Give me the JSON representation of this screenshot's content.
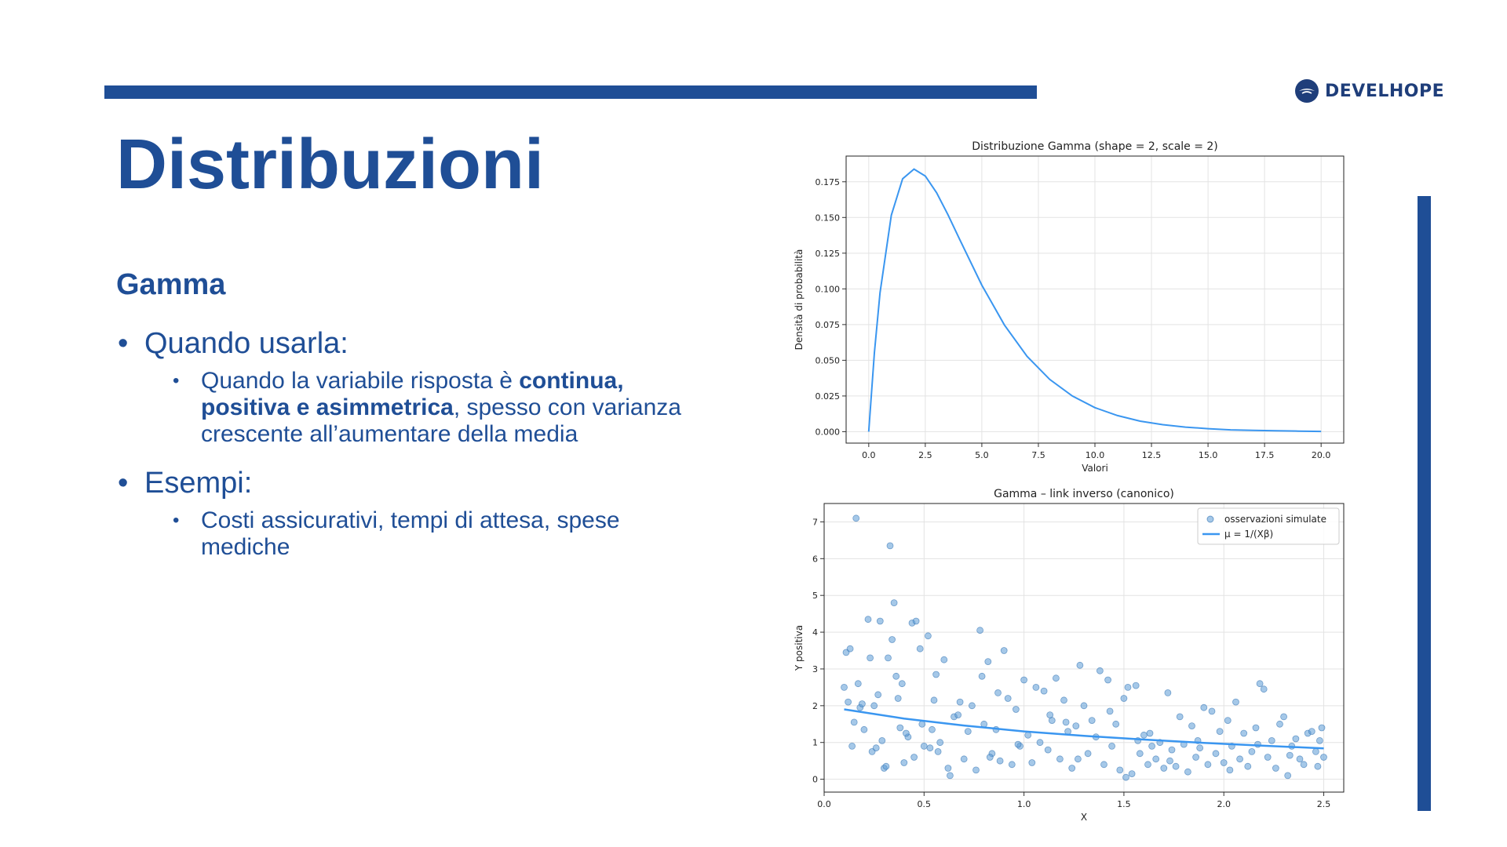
{
  "slide": {
    "title": "Distribuzioni",
    "subtitle": "Gamma",
    "bullets": [
      {
        "text": "Quando usarla:",
        "sub": [
          {
            "parts": [
              {
                "t": "Quando la variabile risposta è ",
                "b": false
              },
              {
                "t": "continua, positiva e asimmetrica",
                "b": true
              },
              {
                "t": ", spesso con varianza crescente all’aumentare della media",
                "b": false
              }
            ]
          }
        ]
      },
      {
        "text": "Esempi:",
        "sub": [
          {
            "parts": [
              {
                "t": "Costi assicurativi, tempi di attesa, spese mediche",
                "b": false
              }
            ]
          }
        ]
      }
    ]
  },
  "logo": {
    "text": "DEVELHOPE",
    "icon": "develhope-logo-icon"
  },
  "colors": {
    "brand": "#1f4e96",
    "curve": "#3a96f0",
    "points": "#5b9bd5"
  },
  "chart_data": [
    {
      "type": "line",
      "title": "Distribuzione Gamma (shape = 2, scale = 2)",
      "xlabel": "Valori",
      "ylabel": "Densità di probabilità",
      "xlim": [
        -1,
        21
      ],
      "ylim": [
        -0.008,
        0.193
      ],
      "xticks": [
        "0.0",
        "2.5",
        "5.0",
        "7.5",
        "10.0",
        "12.5",
        "15.0",
        "17.5",
        "20.0"
      ],
      "yticks": [
        "0.000",
        "0.025",
        "0.050",
        "0.075",
        "0.100",
        "0.125",
        "0.150",
        "0.175"
      ],
      "grid": true,
      "x": [
        0,
        0.25,
        0.5,
        1,
        1.5,
        2,
        2.5,
        3,
        3.5,
        4,
        5,
        6,
        7,
        8,
        9,
        10,
        11,
        12,
        13,
        14,
        15,
        16,
        17,
        18,
        19,
        20
      ],
      "y": [
        0,
        0.0551,
        0.0973,
        0.1516,
        0.1771,
        0.1839,
        0.179,
        0.1673,
        0.152,
        0.1353,
        0.1026,
        0.0747,
        0.0528,
        0.0366,
        0.025,
        0.0168,
        0.0113,
        0.0074,
        0.0049,
        0.0032,
        0.0021,
        0.0013,
        0.0009,
        0.0006,
        0.0004,
        0.0002
      ]
    },
    {
      "type": "scatter",
      "title": "Gamma – link inverso (canonico)",
      "xlabel": "X",
      "ylabel": "Y positiva",
      "xlim": [
        0,
        2.6
      ],
      "ylim": [
        -0.35,
        7.5
      ],
      "xticks": [
        "0.0",
        "0.5",
        "1.0",
        "1.5",
        "2.0",
        "2.5"
      ],
      "yticks": [
        "0",
        "1",
        "2",
        "3",
        "4",
        "5",
        "6",
        "7"
      ],
      "grid": true,
      "legend_position": "top-right",
      "series": [
        {
          "name": "osservazioni simulate",
          "kind": "scatter",
          "points": [
            [
              0.1,
              2.5
            ],
            [
              0.11,
              3.45
            ],
            [
              0.12,
              2.1
            ],
            [
              0.13,
              3.55
            ],
            [
              0.14,
              0.9
            ],
            [
              0.15,
              1.55
            ],
            [
              0.16,
              7.1
            ],
            [
              0.17,
              2.6
            ],
            [
              0.18,
              1.95
            ],
            [
              0.2,
              1.35
            ],
            [
              0.22,
              4.35
            ],
            [
              0.23,
              3.3
            ],
            [
              0.24,
              0.75
            ],
            [
              0.25,
              2.0
            ],
            [
              0.27,
              2.3
            ],
            [
              0.28,
              4.3
            ],
            [
              0.29,
              1.05
            ],
            [
              0.3,
              0.3
            ],
            [
              0.31,
              0.35
            ],
            [
              0.32,
              3.3
            ],
            [
              0.33,
              6.35
            ],
            [
              0.34,
              3.8
            ],
            [
              0.35,
              4.8
            ],
            [
              0.36,
              2.8
            ],
            [
              0.37,
              2.2
            ],
            [
              0.38,
              1.4
            ],
            [
              0.39,
              2.6
            ],
            [
              0.4,
              0.45
            ],
            [
              0.42,
              1.15
            ],
            [
              0.44,
              4.25
            ],
            [
              0.45,
              0.6
            ],
            [
              0.46,
              4.3
            ],
            [
              0.48,
              3.55
            ],
            [
              0.49,
              1.5
            ],
            [
              0.5,
              0.9
            ],
            [
              0.52,
              3.9
            ],
            [
              0.53,
              0.85
            ],
            [
              0.55,
              2.15
            ],
            [
              0.56,
              2.85
            ],
            [
              0.58,
              1.0
            ],
            [
              0.6,
              3.25
            ],
            [
              0.62,
              0.3
            ],
            [
              0.63,
              0.1
            ],
            [
              0.65,
              1.7
            ],
            [
              0.68,
              2.1
            ],
            [
              0.7,
              0.55
            ],
            [
              0.72,
              1.3
            ],
            [
              0.74,
              2.0
            ],
            [
              0.76,
              0.25
            ],
            [
              0.78,
              4.05
            ],
            [
              0.79,
              2.8
            ],
            [
              0.8,
              1.5
            ],
            [
              0.82,
              3.2
            ],
            [
              0.84,
              0.7
            ],
            [
              0.86,
              1.35
            ],
            [
              0.88,
              0.5
            ],
            [
              0.9,
              3.5
            ],
            [
              0.92,
              2.2
            ],
            [
              0.94,
              0.4
            ],
            [
              0.96,
              1.9
            ],
            [
              0.98,
              0.9
            ],
            [
              1.0,
              2.7
            ],
            [
              1.02,
              1.2
            ],
            [
              1.04,
              0.45
            ],
            [
              1.06,
              2.5
            ],
            [
              1.08,
              1.0
            ],
            [
              1.1,
              2.4
            ],
            [
              1.12,
              0.8
            ],
            [
              1.14,
              1.6
            ],
            [
              1.16,
              2.75
            ],
            [
              1.18,
              0.55
            ],
            [
              1.2,
              2.15
            ],
            [
              1.22,
              1.3
            ],
            [
              1.24,
              0.3
            ],
            [
              1.26,
              1.45
            ],
            [
              1.28,
              3.1
            ],
            [
              1.3,
              2.0
            ],
            [
              1.32,
              0.7
            ],
            [
              1.34,
              1.6
            ],
            [
              1.36,
              1.15
            ],
            [
              1.38,
              2.95
            ],
            [
              1.4,
              0.4
            ],
            [
              1.42,
              2.7
            ],
            [
              1.44,
              0.9
            ],
            [
              1.46,
              1.5
            ],
            [
              1.48,
              0.25
            ],
            [
              1.5,
              2.2
            ],
            [
              1.51,
              0.05
            ],
            [
              1.52,
              2.5
            ],
            [
              1.54,
              0.15
            ],
            [
              1.56,
              2.55
            ],
            [
              1.58,
              0.7
            ],
            [
              1.6,
              1.2
            ],
            [
              1.62,
              0.4
            ],
            [
              1.64,
              0.9
            ],
            [
              1.66,
              0.55
            ],
            [
              1.68,
              1.0
            ],
            [
              1.7,
              0.3
            ],
            [
              1.72,
              2.35
            ],
            [
              1.74,
              0.8
            ],
            [
              1.76,
              0.35
            ],
            [
              1.78,
              1.7
            ],
            [
              1.8,
              0.95
            ],
            [
              1.82,
              0.2
            ],
            [
              1.84,
              1.45
            ],
            [
              1.86,
              0.6
            ],
            [
              1.88,
              0.85
            ],
            [
              1.9,
              1.95
            ],
            [
              1.92,
              0.4
            ],
            [
              1.94,
              1.85
            ],
            [
              1.96,
              0.7
            ],
            [
              1.98,
              1.3
            ],
            [
              2.0,
              0.45
            ],
            [
              2.02,
              1.6
            ],
            [
              2.04,
              0.9
            ],
            [
              2.06,
              2.1
            ],
            [
              2.08,
              0.55
            ],
            [
              2.1,
              1.25
            ],
            [
              2.12,
              0.35
            ],
            [
              2.14,
              0.75
            ],
            [
              2.16,
              1.4
            ],
            [
              2.18,
              2.6
            ],
            [
              2.2,
              2.45
            ],
            [
              2.22,
              0.6
            ],
            [
              2.24,
              1.05
            ],
            [
              2.26,
              0.3
            ],
            [
              2.28,
              1.5
            ],
            [
              2.3,
              1.7
            ],
            [
              2.32,
              0.1
            ],
            [
              2.34,
              0.9
            ],
            [
              2.36,
              1.1
            ],
            [
              2.38,
              0.55
            ],
            [
              2.4,
              0.4
            ],
            [
              2.42,
              1.25
            ],
            [
              2.44,
              1.3
            ],
            [
              2.46,
              0.75
            ],
            [
              2.48,
              1.05
            ],
            [
              2.49,
              1.4
            ],
            [
              2.5,
              0.6
            ],
            [
              0.26,
              0.85
            ],
            [
              0.41,
              1.25
            ],
            [
              0.57,
              0.75
            ],
            [
              0.67,
              1.75
            ],
            [
              0.83,
              0.6
            ],
            [
              0.97,
              0.95
            ],
            [
              1.13,
              1.75
            ],
            [
              1.27,
              0.55
            ],
            [
              1.43,
              1.85
            ],
            [
              1.57,
              1.05
            ],
            [
              1.73,
              0.5
            ],
            [
              1.87,
              1.05
            ],
            [
              2.03,
              0.25
            ],
            [
              2.17,
              0.95
            ],
            [
              2.33,
              0.65
            ],
            [
              2.47,
              0.35
            ],
            [
              0.19,
              2.05
            ],
            [
              0.54,
              1.35
            ],
            [
              0.87,
              2.35
            ],
            [
              1.21,
              1.55
            ],
            [
              1.63,
              1.25
            ]
          ]
        },
        {
          "name": "μ = 1/(Xβ)",
          "kind": "line",
          "x": [
            0.1,
            0.4,
            0.7,
            1.0,
            1.3,
            1.6,
            1.9,
            2.2,
            2.5
          ],
          "y": [
            1.9,
            1.65,
            1.46,
            1.3,
            1.18,
            1.08,
            0.99,
            0.91,
            0.84
          ]
        }
      ]
    }
  ]
}
